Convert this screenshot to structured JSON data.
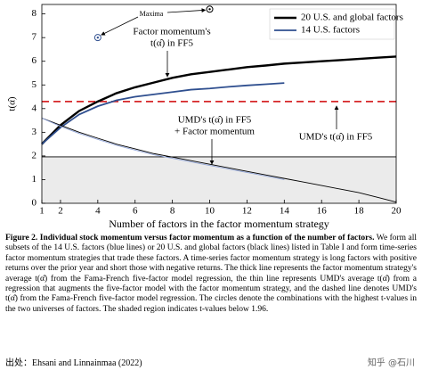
{
  "chart_data": {
    "type": "line",
    "xlabel": "Number of factors in the factor momentum strategy",
    "ylabel": "t(α̂)",
    "xlim": [
      1,
      20
    ],
    "ylim": [
      0,
      8.4
    ],
    "xticks": [
      1,
      2,
      4,
      6,
      8,
      10,
      12,
      14,
      16,
      18,
      20
    ],
    "yticks": [
      0,
      1,
      2,
      3,
      4,
      5,
      6,
      7,
      8
    ],
    "series": [
      {
        "name": "20 U.S. and global factors",
        "color": "#000000",
        "x": [
          1,
          2,
          3,
          4,
          5,
          6,
          7,
          8,
          9,
          10,
          11,
          12,
          13,
          14,
          15,
          16,
          17,
          18,
          19,
          20
        ],
        "values": [
          2.5,
          3.3,
          3.9,
          4.3,
          4.65,
          4.9,
          5.1,
          5.3,
          5.45,
          5.55,
          5.65,
          5.75,
          5.82,
          5.9,
          5.95,
          6.0,
          6.05,
          6.1,
          6.15,
          6.2
        ]
      },
      {
        "name": "14 U.S. factors",
        "color": "#2f4f8f",
        "x": [
          1,
          2,
          3,
          4,
          5,
          6,
          7,
          8,
          9,
          10,
          11,
          12,
          13,
          14
        ],
        "values": [
          2.5,
          3.2,
          3.75,
          4.1,
          4.35,
          4.5,
          4.6,
          4.7,
          4.8,
          4.85,
          4.92,
          4.98,
          5.03,
          5.08
        ]
      },
      {
        "color": "#000000",
        "x": [
          1,
          2,
          3,
          4,
          5,
          6,
          7,
          8,
          9,
          10,
          11,
          12,
          13,
          14,
          15,
          16,
          17,
          18,
          19,
          20
        ],
        "values": [
          3.6,
          3.3,
          3.0,
          2.75,
          2.5,
          2.3,
          2.1,
          1.95,
          1.8,
          1.65,
          1.5,
          1.35,
          1.2,
          1.05,
          0.9,
          0.75,
          0.6,
          0.45,
          0.25,
          0.05
        ]
      },
      {
        "color": "#8fa3d6",
        "x": [
          1,
          2,
          3,
          4,
          5,
          6,
          7,
          8,
          9,
          10,
          11,
          12,
          13,
          14
        ],
        "values": [
          3.6,
          3.25,
          2.95,
          2.7,
          2.45,
          2.25,
          2.05,
          1.9,
          1.75,
          1.6,
          1.45,
          1.3,
          1.15,
          1.0
        ]
      }
    ],
    "reference_lines": [
      {
        "value": 4.3,
        "color": "#d62728"
      },
      {
        "value": 1.96,
        "color": "#000000"
      }
    ],
    "shade_below": 1.96,
    "markers": [
      {
        "x": 4,
        "y": 7,
        "color": "#2f4f8f"
      },
      {
        "x": 10,
        "y": 8.2,
        "color": "#000000"
      }
    ],
    "annotations": [
      "Maxima",
      "Factor momentum's",
      "t(α̂) in FF5",
      "UMD's t(α̂) in FF5",
      "+ Factor momentum",
      "UMD's t(α̂) in FF5"
    ],
    "legend": "upper right"
  },
  "caption": {
    "label": "Figure 2.",
    "title": "Individual stock momentum versus factor momentum as a function of the number of factors.",
    "body": "We form all subsets of the 14 U.S. factors (blue lines) or 20 U.S. and global factors (black lines) listed in Table I and form time-series factor momentum strategies that trade these factors. A time-series factor momentum strategy is long factors with positive returns over the prior year and short those with negative returns. The thick line represents the factor momentum strategy's average t(α̂) from the Fama-French five-factor model regression, the thin line represents UMD's average t(α̂) from a regression that augments the five-factor model with the factor momentum strategy, and the dashed line denotes UMD's t(α̂) from the Fama-French five-factor model regression. The circles denote the combinations with the highest t-values in the two universes of factors. The shaded region indicates t-values below 1.96."
  },
  "source": "出处：Ehsani and Linnainmaa (2022)",
  "watermark": "知乎 @石川"
}
